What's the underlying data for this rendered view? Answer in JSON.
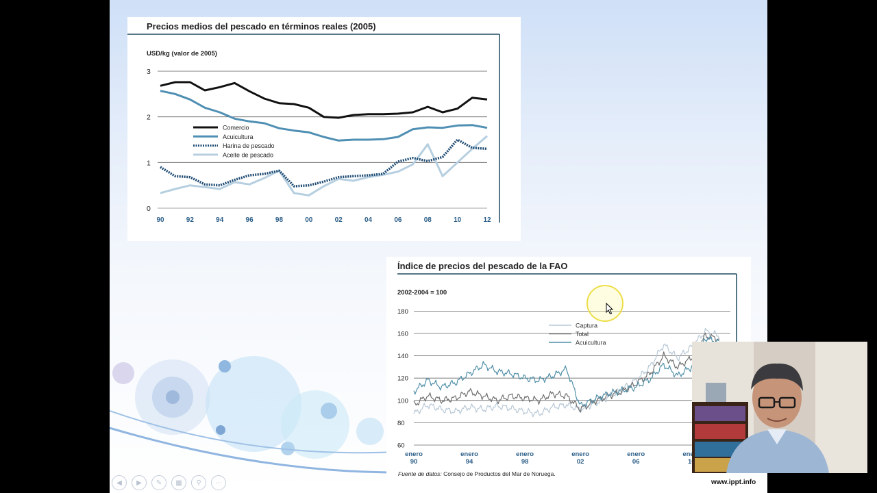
{
  "chart_data": [
    {
      "type": "line",
      "title": "Precios medios del pescado en términos reales (2005)",
      "ylabel": "USD/kg (valor de 2005)",
      "xlabel": "",
      "x": [
        1990,
        1991,
        1992,
        1993,
        1994,
        1995,
        1996,
        1997,
        1998,
        1999,
        2000,
        2001,
        2002,
        2003,
        2004,
        2005,
        2006,
        2007,
        2008,
        2009,
        2010,
        2011,
        2012
      ],
      "xtick_labels": [
        "90",
        "92",
        "94",
        "96",
        "98",
        "00",
        "02",
        "04",
        "06",
        "08",
        "10",
        "12"
      ],
      "ytick_labels": [
        "0",
        "1",
        "2",
        "3"
      ],
      "ylim": [
        0,
        3
      ],
      "grid": "horizontal",
      "legend_position": "middle-left",
      "series": [
        {
          "name": "Comercio",
          "color": "#111111",
          "style": "solid",
          "values": [
            2.68,
            2.76,
            2.76,
            2.58,
            2.65,
            2.74,
            2.56,
            2.4,
            2.3,
            2.28,
            2.2,
            2.0,
            1.98,
            2.04,
            2.06,
            2.06,
            2.07,
            2.1,
            2.22,
            2.1,
            2.18,
            2.42,
            2.38
          ]
        },
        {
          "name": "Acuicultura",
          "color": "#4f8fb3",
          "style": "solid",
          "values": [
            2.57,
            2.5,
            2.38,
            2.2,
            2.1,
            1.96,
            1.9,
            1.86,
            1.75,
            1.7,
            1.66,
            1.56,
            1.48,
            1.5,
            1.5,
            1.51,
            1.56,
            1.73,
            1.77,
            1.76,
            1.81,
            1.82,
            1.76
          ]
        },
        {
          "name": "Harina de pescado",
          "color": "#1d4a72",
          "style": "dotted",
          "values": [
            0.9,
            0.7,
            0.68,
            0.52,
            0.5,
            0.62,
            0.72,
            0.75,
            0.82,
            0.48,
            0.5,
            0.58,
            0.68,
            0.7,
            0.72,
            0.75,
            1.02,
            1.1,
            1.03,
            1.12,
            1.5,
            1.32,
            1.3
          ]
        },
        {
          "name": "Aceite de pescado",
          "color": "#b6cfe0",
          "style": "solid",
          "values": [
            0.33,
            0.42,
            0.5,
            0.46,
            0.42,
            0.57,
            0.52,
            0.66,
            0.82,
            0.33,
            0.28,
            0.48,
            0.64,
            0.6,
            0.68,
            0.73,
            0.8,
            0.96,
            1.4,
            0.7,
            1.0,
            1.3,
            1.58
          ]
        }
      ]
    },
    {
      "type": "line",
      "title": "Índice de precios del pescado de la FAO",
      "ylabel": "2002-2004 = 100",
      "xlabel": "",
      "x": [
        1990,
        1991,
        1992,
        1993,
        1994,
        1995,
        1996,
        1997,
        1998,
        1999,
        2000,
        2001,
        2002,
        2003,
        2004,
        2005,
        2006,
        2007,
        2008,
        2009,
        2010,
        2011,
        2012
      ],
      "xtick_labels": [
        [
          "enero",
          "90"
        ],
        [
          "enero",
          "94"
        ],
        [
          "enero",
          "98"
        ],
        [
          "enero",
          "02"
        ],
        [
          "enero",
          "06"
        ],
        [
          "enero",
          "10"
        ]
      ],
      "ytick_labels": [
        "60",
        "80",
        "100",
        "120",
        "140",
        "160",
        "180"
      ],
      "ylim": [
        60,
        185
      ],
      "grid": "horizontal",
      "legend_position": "top-center",
      "series": [
        {
          "name": "Captura",
          "color": "#b8c8d6",
          "values": [
            88,
            96,
            92,
            90,
            94,
            92,
            95,
            93,
            90,
            88,
            94,
            96,
            92,
            97,
            103,
            110,
            118,
            130,
            150,
            138,
            148,
            162,
            158
          ]
        },
        {
          "name": "Total",
          "color": "#707070",
          "values": [
            96,
            104,
            100,
            102,
            108,
            104,
            100,
            104,
            102,
            100,
            106,
            104,
            92,
            99,
            104,
            108,
            115,
            124,
            140,
            130,
            138,
            158,
            155
          ]
        },
        {
          "name": "Acuicultura",
          "color": "#4f8fa8",
          "values": [
            108,
            118,
            112,
            116,
            124,
            132,
            126,
            124,
            120,
            118,
            122,
            128,
            95,
            101,
            106,
            109,
            112,
            119,
            132,
            122,
            130,
            156,
            152
          ]
        }
      ],
      "source_prefix": "Fuente de datos:",
      "source_text": "Consejo de Productos del Mar de Noruega."
    }
  ],
  "footer": {
    "url": "www.ippt.info"
  },
  "toolbar": {
    "icons": [
      "prev-icon",
      "next-icon",
      "pen-icon",
      "slides-icon",
      "zoom-icon",
      "more-icon"
    ]
  }
}
